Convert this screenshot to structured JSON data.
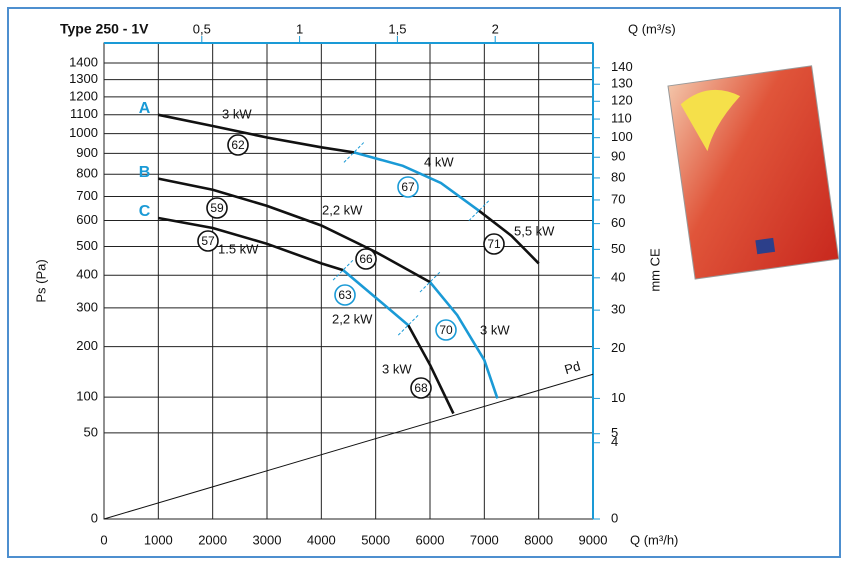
{
  "chart_data": {
    "type": "fan-curve",
    "title": "Type 250 - 1V",
    "x_label": "Q (m³/h)",
    "x2_label": "Q (m³/s)",
    "y_label": "Ps  (Pa)",
    "y2_label": "mm CE",
    "yscale": "sqrt",
    "grid": true,
    "xlim": [
      0,
      9000
    ],
    "xticks": [
      0,
      1000,
      2000,
      3000,
      4000,
      5000,
      6000,
      7000,
      8000,
      9000
    ],
    "x2lim": [
      0,
      2.5
    ],
    "x2ticks": [
      {
        "value": 0.5,
        "label": "0,5"
      },
      1,
      {
        "value": 1.5,
        "label": "1,5"
      },
      2
    ],
    "ylim": [
      0,
      1400
    ],
    "yticks": [
      0,
      50,
      100,
      200,
      300,
      400,
      500,
      600,
      700,
      800,
      900,
      1000,
      1100,
      1200,
      1300,
      1400
    ],
    "y2lim": [
      0,
      143
    ],
    "y2ticks": [
      0,
      4,
      5,
      10,
      20,
      30,
      40,
      50,
      60,
      70,
      80,
      90,
      100,
      110,
      120,
      130,
      140
    ],
    "curves": [
      {
        "name": "A",
        "segments": [
          {
            "color": "#111111",
            "x": [
              1000,
              2000,
              3000,
              4000,
              4600
            ],
            "y": [
              1100,
              1040,
              980,
              930,
              905
            ]
          },
          {
            "color": "#1a9ad6",
            "x": [
              4600,
              5500,
              6200,
              6900
            ],
            "y": [
              905,
              840,
              760,
              640
            ]
          },
          {
            "color": "#111111",
            "x": [
              6900,
              7500,
              8000
            ],
            "y": [
              640,
              540,
              440
            ]
          }
        ]
      },
      {
        "name": "B",
        "segments": [
          {
            "color": "#111111",
            "x": [
              1000,
              2000,
              3000,
              4000,
              5000,
              6000
            ],
            "y": [
              780,
              730,
              660,
              580,
              480,
              378
            ]
          },
          {
            "color": "#1a9ad6",
            "x": [
              6000,
              6500,
              7000,
              7240
            ],
            "y": [
              378,
              280,
              170,
              98
            ]
          }
        ]
      },
      {
        "name": "C",
        "segments": [
          {
            "color": "#111111",
            "x": [
              1000,
              2000,
              3000,
              4000,
              4400
            ],
            "y": [
              610,
              570,
              510,
              440,
              417
            ]
          },
          {
            "color": "#1a9ad6",
            "x": [
              4400,
              5000,
              5600
            ],
            "y": [
              417,
              330,
              253
            ]
          },
          {
            "color": "#111111",
            "x": [
              5600,
              6000,
              6430
            ],
            "y": [
              253,
              160,
              75
            ]
          }
        ]
      }
    ],
    "pd": {
      "name": "Pd",
      "x": [
        0,
        9000
      ],
      "y": [
        0,
        141
      ]
    },
    "efficiency": [
      "62",
      "59",
      "57",
      "67",
      "66",
      "63",
      "71",
      "70",
      "68"
    ],
    "power_labels": [
      "3 kW",
      "4 kW",
      "5,5 kW",
      "2,2 kW",
      "1.5 kW",
      "2,2 kW",
      "3 kW",
      "3 kW"
    ]
  }
}
